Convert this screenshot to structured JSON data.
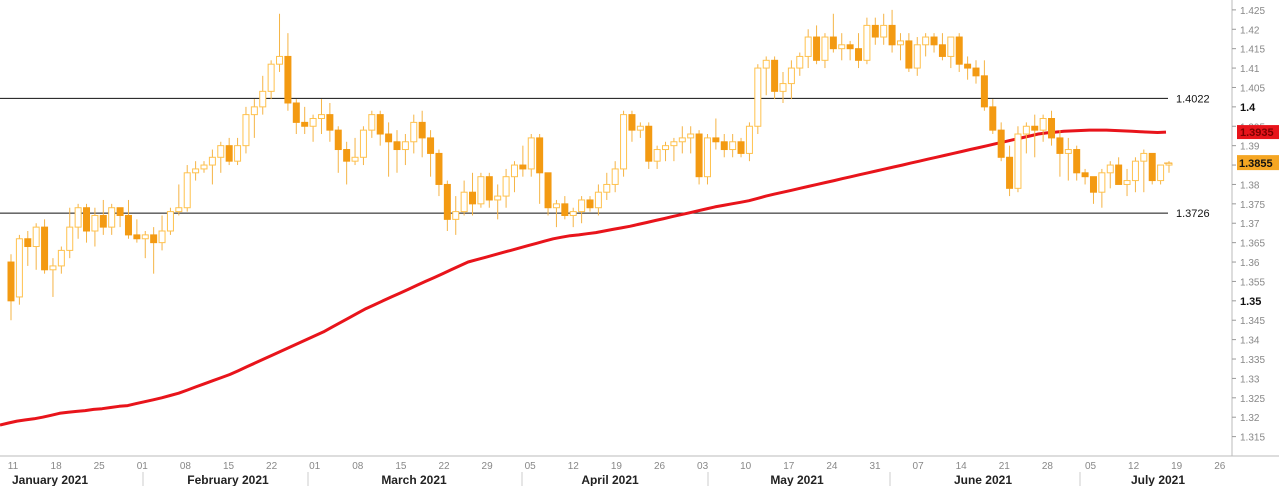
{
  "chart_data": {
    "type": "candlestick",
    "ylim": [
      1.31,
      1.426
    ],
    "y_ticks": [
      "1.315",
      "1.32",
      "1.325",
      "1.33",
      "1.335",
      "1.34",
      "1.345",
      "1.35",
      "1.355",
      "1.36",
      "1.365",
      "1.37",
      "1.375",
      "1.38",
      "1.385",
      "1.39",
      "1.395",
      "1.4",
      "1.405",
      "1.41",
      "1.415",
      "1.42",
      "1.425"
    ],
    "y_ticks_bold": [
      "1.35",
      "1.4"
    ],
    "x_day_ticks": [
      "11",
      "18",
      "25",
      "01",
      "08",
      "15",
      "22",
      "01",
      "08",
      "15",
      "22",
      "29",
      "05",
      "12",
      "19",
      "26",
      "03",
      "10",
      "17",
      "24",
      "31",
      "07",
      "14",
      "21",
      "28",
      "05",
      "12",
      "19",
      "26"
    ],
    "x_month_labels": [
      "January 2021",
      "February 2021",
      "March 2021",
      "April 2021",
      "May 2021",
      "June 2021",
      "July 2021"
    ],
    "horizontal_lines": [
      {
        "value": 1.4022,
        "label": "1.4022"
      },
      {
        "value": 1.3726,
        "label": "1.3726"
      }
    ],
    "ma_value_label": "1.3935",
    "last_price_label": "1.3855",
    "colors": {
      "bull": "#ffc24d",
      "bear": "#f39a12",
      "wick": "#f5b445",
      "ma": "#e8141b",
      "badge_ma": "#e8141b",
      "badge_price": "#f5a623"
    },
    "candles": [
      [
        1.36,
        1.362,
        1.345,
        1.35
      ],
      [
        1.351,
        1.367,
        1.349,
        1.366
      ],
      [
        1.366,
        1.368,
        1.359,
        1.364
      ],
      [
        1.364,
        1.37,
        1.358,
        1.369
      ],
      [
        1.369,
        1.371,
        1.357,
        1.358
      ],
      [
        1.358,
        1.361,
        1.351,
        1.359
      ],
      [
        1.359,
        1.364,
        1.357,
        1.363
      ],
      [
        1.363,
        1.374,
        1.361,
        1.369
      ],
      [
        1.369,
        1.375,
        1.366,
        1.374
      ],
      [
        1.374,
        1.375,
        1.365,
        1.368
      ],
      [
        1.368,
        1.374,
        1.364,
        1.372
      ],
      [
        1.372,
        1.376,
        1.367,
        1.369
      ],
      [
        1.369,
        1.375,
        1.367,
        1.374
      ],
      [
        1.374,
        1.374,
        1.369,
        1.372
      ],
      [
        1.372,
        1.376,
        1.366,
        1.367
      ],
      [
        1.367,
        1.371,
        1.365,
        1.366
      ],
      [
        1.366,
        1.368,
        1.361,
        1.367
      ],
      [
        1.367,
        1.369,
        1.357,
        1.365
      ],
      [
        1.365,
        1.372,
        1.363,
        1.368
      ],
      [
        1.368,
        1.374,
        1.367,
        1.373
      ],
      [
        1.373,
        1.38,
        1.372,
        1.374
      ],
      [
        1.374,
        1.385,
        1.373,
        1.383
      ],
      [
        1.383,
        1.386,
        1.381,
        1.384
      ],
      [
        1.384,
        1.386,
        1.383,
        1.385
      ],
      [
        1.385,
        1.389,
        1.38,
        1.387
      ],
      [
        1.387,
        1.391,
        1.383,
        1.39
      ],
      [
        1.39,
        1.392,
        1.385,
        1.386
      ],
      [
        1.386,
        1.392,
        1.385,
        1.39
      ],
      [
        1.39,
        1.4,
        1.388,
        1.398
      ],
      [
        1.398,
        1.402,
        1.392,
        1.4
      ],
      [
        1.4,
        1.408,
        1.398,
        1.404
      ],
      [
        1.404,
        1.412,
        1.402,
        1.411
      ],
      [
        1.411,
        1.424,
        1.409,
        1.413
      ],
      [
        1.413,
        1.419,
        1.399,
        1.401
      ],
      [
        1.401,
        1.402,
        1.393,
        1.396
      ],
      [
        1.396,
        1.4,
        1.393,
        1.395
      ],
      [
        1.395,
        1.398,
        1.391,
        1.397
      ],
      [
        1.397,
        1.402,
        1.393,
        1.398
      ],
      [
        1.398,
        1.401,
        1.391,
        1.394
      ],
      [
        1.394,
        1.395,
        1.383,
        1.389
      ],
      [
        1.389,
        1.391,
        1.38,
        1.386
      ],
      [
        1.386,
        1.392,
        1.385,
        1.387
      ],
      [
        1.387,
        1.395,
        1.385,
        1.394
      ],
      [
        1.394,
        1.399,
        1.392,
        1.398
      ],
      [
        1.398,
        1.399,
        1.39,
        1.393
      ],
      [
        1.393,
        1.396,
        1.382,
        1.391
      ],
      [
        1.391,
        1.394,
        1.383,
        1.389
      ],
      [
        1.389,
        1.393,
        1.385,
        1.391
      ],
      [
        1.391,
        1.398,
        1.388,
        1.396
      ],
      [
        1.396,
        1.399,
        1.387,
        1.392
      ],
      [
        1.392,
        1.394,
        1.382,
        1.388
      ],
      [
        1.388,
        1.389,
        1.377,
        1.38
      ],
      [
        1.38,
        1.381,
        1.368,
        1.371
      ],
      [
        1.371,
        1.377,
        1.367,
        1.373
      ],
      [
        1.373,
        1.381,
        1.372,
        1.378
      ],
      [
        1.378,
        1.383,
        1.372,
        1.375
      ],
      [
        1.375,
        1.383,
        1.374,
        1.382
      ],
      [
        1.382,
        1.383,
        1.374,
        1.376
      ],
      [
        1.376,
        1.38,
        1.371,
        1.377
      ],
      [
        1.377,
        1.384,
        1.374,
        1.382
      ],
      [
        1.382,
        1.386,
        1.378,
        1.385
      ],
      [
        1.385,
        1.39,
        1.382,
        1.384
      ],
      [
        1.384,
        1.393,
        1.382,
        1.392
      ],
      [
        1.392,
        1.393,
        1.375,
        1.383
      ],
      [
        1.383,
        1.383,
        1.372,
        1.374
      ],
      [
        1.374,
        1.376,
        1.369,
        1.375
      ],
      [
        1.375,
        1.377,
        1.371,
        1.372
      ],
      [
        1.372,
        1.374,
        1.369,
        1.373
      ],
      [
        1.373,
        1.377,
        1.37,
        1.376
      ],
      [
        1.376,
        1.377,
        1.373,
        1.374
      ],
      [
        1.374,
        1.38,
        1.372,
        1.378
      ],
      [
        1.378,
        1.383,
        1.376,
        1.38
      ],
      [
        1.38,
        1.386,
        1.378,
        1.384
      ],
      [
        1.384,
        1.399,
        1.382,
        1.398
      ],
      [
        1.398,
        1.399,
        1.391,
        1.394
      ],
      [
        1.394,
        1.396,
        1.392,
        1.395
      ],
      [
        1.395,
        1.396,
        1.384,
        1.386
      ],
      [
        1.386,
        1.39,
        1.384,
        1.389
      ],
      [
        1.389,
        1.391,
        1.386,
        1.39
      ],
      [
        1.39,
        1.392,
        1.386,
        1.391
      ],
      [
        1.391,
        1.395,
        1.388,
        1.392
      ],
      [
        1.392,
        1.395,
        1.388,
        1.393
      ],
      [
        1.393,
        1.394,
        1.38,
        1.382
      ],
      [
        1.382,
        1.393,
        1.38,
        1.392
      ],
      [
        1.392,
        1.397,
        1.389,
        1.391
      ],
      [
        1.391,
        1.393,
        1.387,
        1.389
      ],
      [
        1.389,
        1.393,
        1.387,
        1.391
      ],
      [
        1.391,
        1.392,
        1.387,
        1.388
      ],
      [
        1.388,
        1.396,
        1.386,
        1.395
      ],
      [
        1.395,
        1.411,
        1.393,
        1.41
      ],
      [
        1.41,
        1.413,
        1.403,
        1.412
      ],
      [
        1.412,
        1.413,
        1.402,
        1.404
      ],
      [
        1.404,
        1.409,
        1.401,
        1.406
      ],
      [
        1.406,
        1.412,
        1.402,
        1.41
      ],
      [
        1.41,
        1.414,
        1.408,
        1.413
      ],
      [
        1.413,
        1.42,
        1.41,
        1.418
      ],
      [
        1.418,
        1.421,
        1.411,
        1.412
      ],
      [
        1.412,
        1.419,
        1.41,
        1.418
      ],
      [
        1.418,
        1.424,
        1.414,
        1.415
      ],
      [
        1.415,
        1.419,
        1.412,
        1.416
      ],
      [
        1.416,
        1.417,
        1.412,
        1.415
      ],
      [
        1.415,
        1.419,
        1.41,
        1.412
      ],
      [
        1.412,
        1.423,
        1.411,
        1.421
      ],
      [
        1.421,
        1.423,
        1.416,
        1.418
      ],
      [
        1.418,
        1.424,
        1.416,
        1.421
      ],
      [
        1.421,
        1.425,
        1.414,
        1.416
      ],
      [
        1.416,
        1.419,
        1.412,
        1.417
      ],
      [
        1.417,
        1.419,
        1.409,
        1.41
      ],
      [
        1.41,
        1.418,
        1.408,
        1.416
      ],
      [
        1.416,
        1.419,
        1.413,
        1.418
      ],
      [
        1.418,
        1.419,
        1.414,
        1.416
      ],
      [
        1.416,
        1.419,
        1.412,
        1.413
      ],
      [
        1.413,
        1.418,
        1.41,
        1.418
      ],
      [
        1.418,
        1.419,
        1.409,
        1.411
      ],
      [
        1.411,
        1.413,
        1.407,
        1.41
      ],
      [
        1.41,
        1.412,
        1.406,
        1.408
      ],
      [
        1.408,
        1.412,
        1.399,
        1.4
      ],
      [
        1.4,
        1.402,
        1.393,
        1.394
      ],
      [
        1.394,
        1.396,
        1.386,
        1.387
      ],
      [
        1.387,
        1.39,
        1.377,
        1.379
      ],
      [
        1.379,
        1.395,
        1.378,
        1.393
      ],
      [
        1.393,
        1.396,
        1.388,
        1.395
      ],
      [
        1.395,
        1.398,
        1.387,
        1.394
      ],
      [
        1.394,
        1.398,
        1.391,
        1.397
      ],
      [
        1.397,
        1.399,
        1.39,
        1.392
      ],
      [
        1.392,
        1.394,
        1.382,
        1.388
      ],
      [
        1.388,
        1.392,
        1.381,
        1.389
      ],
      [
        1.389,
        1.39,
        1.381,
        1.383
      ],
      [
        1.383,
        1.384,
        1.38,
        1.382
      ],
      [
        1.382,
        1.382,
        1.375,
        1.378
      ],
      [
        1.378,
        1.384,
        1.374,
        1.383
      ],
      [
        1.383,
        1.386,
        1.379,
        1.385
      ],
      [
        1.385,
        1.387,
        1.38,
        1.38
      ],
      [
        1.38,
        1.384,
        1.377,
        1.381
      ],
      [
        1.381,
        1.387,
        1.378,
        1.386
      ],
      [
        1.386,
        1.389,
        1.378,
        1.388
      ],
      [
        1.388,
        1.388,
        1.38,
        1.381
      ],
      [
        1.381,
        1.384,
        1.38,
        1.385
      ],
      [
        1.385,
        1.386,
        1.383,
        1.3855
      ]
    ],
    "ma": [
      1.318,
      1.3185,
      1.319,
      1.3193,
      1.3196,
      1.32,
      1.3205,
      1.321,
      1.3213,
      1.3215,
      1.3217,
      1.322,
      1.3222,
      1.3225,
      1.3228,
      1.323,
      1.3235,
      1.324,
      1.3245,
      1.325,
      1.3256,
      1.3262,
      1.327,
      1.3278,
      1.3286,
      1.3294,
      1.3302,
      1.331,
      1.332,
      1.333,
      1.334,
      1.335,
      1.336,
      1.337,
      1.338,
      1.339,
      1.34,
      1.341,
      1.342,
      1.3432,
      1.3444,
      1.3456,
      1.3468,
      1.348,
      1.349,
      1.35,
      1.351,
      1.352,
      1.353,
      1.354,
      1.355,
      1.356,
      1.357,
      1.358,
      1.359,
      1.36,
      1.3606,
      1.3612,
      1.3618,
      1.3624,
      1.363,
      1.3636,
      1.3642,
      1.3648,
      1.3654,
      1.366,
      1.3664,
      1.3668,
      1.367,
      1.3673,
      1.3676,
      1.368,
      1.3684,
      1.3688,
      1.3692,
      1.3697,
      1.3702,
      1.3707,
      1.3712,
      1.3717,
      1.3722,
      1.3727,
      1.3732,
      1.3737,
      1.3742,
      1.3746,
      1.375,
      1.3754,
      1.3758,
      1.3764,
      1.377,
      1.3775,
      1.378,
      1.3785,
      1.379,
      1.3795,
      1.38,
      1.3805,
      1.381,
      1.3815,
      1.382,
      1.3825,
      1.383,
      1.3835,
      1.384,
      1.3845,
      1.385,
      1.3855,
      1.386,
      1.3865,
      1.387,
      1.3875,
      1.388,
      1.3885,
      1.389,
      1.3895,
      1.39,
      1.3905,
      1.391,
      1.3915,
      1.392,
      1.3925,
      1.393,
      1.3933,
      1.3935,
      1.3937,
      1.3938,
      1.3939,
      1.394,
      1.394,
      1.394,
      1.3939,
      1.3938,
      1.3937,
      1.3936,
      1.3935,
      1.3934,
      1.3935
    ]
  }
}
